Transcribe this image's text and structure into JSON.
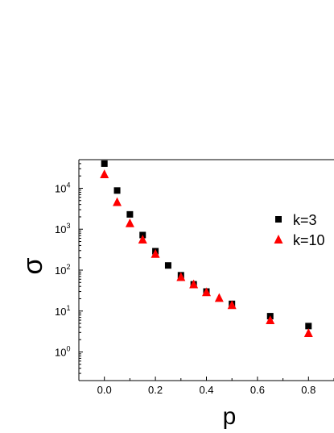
{
  "chart_data": {
    "type": "scatter",
    "xlabel": "p",
    "ylabel": "σ",
    "xlim": [
      -0.1,
      0.9
    ],
    "ylim": [
      0.2,
      50000
    ],
    "yscale": "log",
    "grid": false,
    "legend_position": "right",
    "x_ticks": [
      {
        "value": 0.0,
        "label": "0.0"
      },
      {
        "value": 0.2,
        "label": "0.2"
      },
      {
        "value": 0.4,
        "label": "0.4"
      },
      {
        "value": 0.6,
        "label": "0.6"
      },
      {
        "value": 0.8,
        "label": "0.8"
      }
    ],
    "y_ticks": [
      {
        "value": 1,
        "base": "10",
        "exp": "0"
      },
      {
        "value": 10,
        "base": "10",
        "exp": "1"
      },
      {
        "value": 100,
        "base": "10",
        "exp": "2"
      },
      {
        "value": 1000,
        "base": "10",
        "exp": "3"
      },
      {
        "value": 10000,
        "base": "10",
        "exp": "4"
      }
    ],
    "series": [
      {
        "name": "k=3",
        "marker": "square",
        "color": "#000000",
        "points": [
          [
            0.0,
            40000
          ],
          [
            0.05,
            8800
          ],
          [
            0.1,
            2300
          ],
          [
            0.15,
            720
          ],
          [
            0.2,
            290
          ],
          [
            0.25,
            130
          ],
          [
            0.3,
            75
          ],
          [
            0.35,
            45
          ],
          [
            0.4,
            30
          ],
          [
            0.5,
            15
          ],
          [
            0.65,
            7.5
          ],
          [
            0.8,
            4.3
          ]
        ]
      },
      {
        "name": "k=10",
        "marker": "triangle",
        "color": "#ff0000",
        "points": [
          [
            0.0,
            22000
          ],
          [
            0.05,
            4600
          ],
          [
            0.1,
            1400
          ],
          [
            0.15,
            560
          ],
          [
            0.2,
            250
          ],
          [
            0.3,
            68
          ],
          [
            0.35,
            45
          ],
          [
            0.4,
            29
          ],
          [
            0.45,
            21
          ],
          [
            0.5,
            14
          ],
          [
            0.65,
            6.0
          ],
          [
            0.8,
            2.9
          ]
        ]
      }
    ]
  }
}
